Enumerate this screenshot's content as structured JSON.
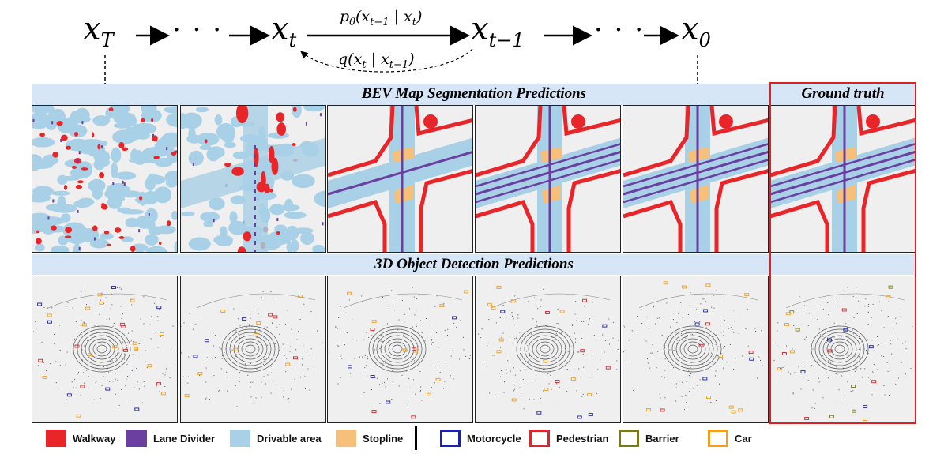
{
  "chain": {
    "xT_base": "x",
    "xT_sub": "T",
    "dots": "· · ·",
    "xt_base": "x",
    "xt_sub": "t",
    "xtm1_base": "x",
    "xtm1_sub": "t−1",
    "x0_base": "x",
    "x0_sub": "0",
    "forward_label": "p_θ(x_{t−1} | x_t)",
    "forward_p": "p",
    "forward_theta": "θ",
    "forward_args": "(x",
    "forward_args_sub": "t−1",
    "forward_bar": " | x",
    "forward_bar_sub": "t",
    "forward_close": ")",
    "reverse_q": "q(x",
    "reverse_sub1": "t",
    "reverse_bar": " | x",
    "reverse_sub2": "t−1",
    "reverse_close": ")"
  },
  "sections": {
    "bev_title": "BEV Map Segmentation Predictions",
    "ground_truth_title": "Ground truth",
    "det_title": "3D Object Detection Predictions"
  },
  "legend": {
    "items": [
      {
        "label": "Walkway",
        "color": "#e8262a",
        "style": "filled"
      },
      {
        "label": "Lane Divider",
        "color": "#6a3fa0",
        "style": "filled"
      },
      {
        "label": "Drivable area",
        "color": "#a8d0e6",
        "style": "filled"
      },
      {
        "label": "Stopline",
        "color": "#f7c07a",
        "style": "filled"
      },
      {
        "label": "Motorcycle",
        "color": "#1a22a8",
        "style": "outline"
      },
      {
        "label": "Pedestrian",
        "color": "#d8282c",
        "style": "outline"
      },
      {
        "label": "Barrier",
        "color": "#7a7a1a",
        "style": "outline"
      },
      {
        "label": "Car",
        "color": "#f0a020",
        "style": "outline"
      }
    ]
  },
  "colors": {
    "walkway": "#e8262a",
    "lane_divider": "#6a3fa0",
    "drivable": "#a8d0e6",
    "stopline": "#f7c07a",
    "background": "#efefef",
    "band": "#d6e6f6",
    "gt_border": "#e02020"
  }
}
